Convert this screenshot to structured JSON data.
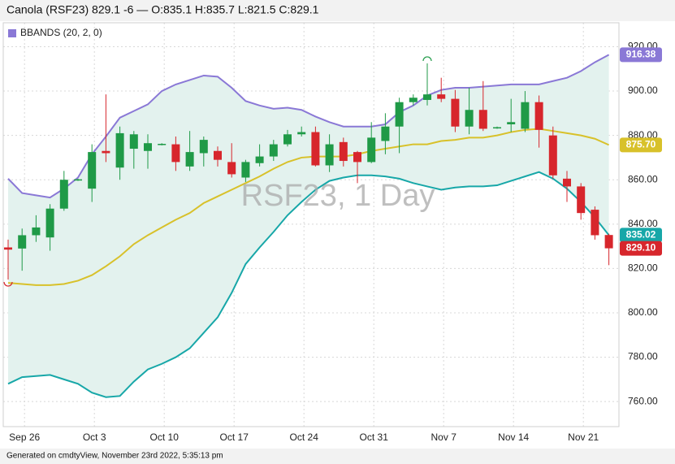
{
  "header": {
    "title": "Canola (RSF23) 829.1 -6 — O:835.1 H:835.7 L:821.5 C:829.1"
  },
  "footer": {
    "text": "Generated on cmdtyView, November 23rd 2022, 5:35:13 pm"
  },
  "chart_data": {
    "type": "candlestick",
    "watermark": "RSF23, 1 Day",
    "legend": "BBANDS (20, 2, 0)",
    "categories": [
      null,
      "Sep 26",
      null,
      null,
      null,
      null,
      "Oct 3",
      null,
      null,
      null,
      null,
      "Oct 10",
      null,
      null,
      null,
      null,
      "Oct 17",
      null,
      null,
      null,
      null,
      "Oct 24",
      null,
      null,
      null,
      null,
      "Oct 31",
      null,
      null,
      null,
      null,
      "Nov 7",
      null,
      null,
      null,
      null,
      "Nov 14",
      null,
      null,
      null,
      null,
      "Nov 21",
      null,
      null
    ],
    "open": [
      829.5,
      829,
      835,
      834,
      847,
      860,
      856,
      873,
      865.5,
      874,
      873,
      876,
      876,
      866,
      872,
      873,
      868,
      861,
      867.5,
      870.5,
      876,
      880.5,
      881.5,
      866.5,
      877,
      872.5,
      868,
      877.5,
      884,
      895,
      896,
      898.5,
      896.5,
      884,
      891.5,
      883.5,
      885,
      883,
      895,
      880,
      860.5,
      857,
      846.5,
      835.1
    ],
    "high": [
      833,
      838,
      844,
      849,
      864,
      860.5,
      876,
      898.5,
      884,
      882,
      880.5,
      876.5,
      879.5,
      882,
      879.5,
      875,
      876.5,
      869,
      876,
      878,
      882.5,
      884,
      884,
      880.5,
      879,
      873,
      886,
      890,
      897,
      898.5,
      912.5,
      906,
      900.5,
      901.5,
      904.5,
      884,
      896.5,
      900,
      898,
      884,
      864,
      858.5,
      848,
      835.7
    ],
    "low": [
      815,
      819,
      832,
      828,
      846,
      859.5,
      850,
      868,
      860,
      865,
      865,
      875.5,
      864,
      864,
      866,
      866,
      861,
      859,
      866,
      868.5,
      875,
      879.5,
      866,
      863.5,
      866,
      858.5,
      867.5,
      871.5,
      872,
      893.5,
      893.5,
      895,
      881.5,
      880.5,
      882,
      883,
      881.5,
      881.5,
      874.5,
      860.5,
      850,
      842,
      833,
      821.5
    ],
    "close": [
      828.5,
      835,
      838.5,
      847,
      860,
      860.2,
      872.5,
      872,
      881,
      880.5,
      876.5,
      876.2,
      868,
      872.5,
      878,
      869,
      862.5,
      868,
      870.5,
      876,
      880.5,
      881.5,
      866.5,
      876,
      868.5,
      868,
      879,
      884,
      895,
      897,
      898.5,
      896.5,
      884,
      891.5,
      883,
      883.7,
      886,
      895,
      882.5,
      862,
      857,
      845,
      835,
      829.1
    ],
    "close_last_label": "829.10",
    "up_color": "#1f9a47",
    "down_color": "#d7262c",
    "series": [
      {
        "name": "upper",
        "color": "#8a78d6",
        "last_label": "916.38",
        "values": [
          860.5,
          854,
          853,
          852,
          856,
          861,
          871.5,
          879.5,
          888,
          891,
          894,
          900,
          903,
          905,
          907,
          906.5,
          901.5,
          895.5,
          893.5,
          892,
          892.5,
          891.5,
          888.5,
          886,
          884,
          884,
          884,
          885,
          890.5,
          893.5,
          898,
          900.5,
          901.5,
          901.5,
          902,
          902.5,
          903,
          903,
          903,
          904.5,
          906,
          909,
          913,
          916.38
        ]
      },
      {
        "name": "middle",
        "color": "#d8c12a",
        "last_label": "875.70",
        "values": [
          813.5,
          813,
          812.5,
          812.5,
          813,
          814.5,
          817,
          821,
          825.5,
          831,
          835,
          838.5,
          842,
          845,
          849.5,
          852.5,
          855.5,
          858.5,
          861.5,
          865,
          868,
          870,
          870.5,
          870.5,
          870.5,
          871.5,
          873,
          874,
          875,
          876,
          876,
          877.5,
          878,
          879,
          879,
          880,
          881.5,
          882.5,
          883,
          882,
          881,
          880,
          878.5,
          875.7
        ]
      },
      {
        "name": "lower",
        "color": "#17a7a8",
        "last_label": "835.02",
        "values": [
          768,
          771,
          771.5,
          772,
          770,
          768,
          764,
          762,
          762.5,
          769,
          774.5,
          777,
          780,
          784,
          791,
          798,
          809,
          822,
          829.5,
          836.5,
          844,
          850,
          855.5,
          859.5,
          861,
          862,
          862,
          861.5,
          860.5,
          858.5,
          857,
          855.5,
          856.5,
          857,
          857,
          857.5,
          859.5,
          861.5,
          863.5,
          860.5,
          856,
          850,
          843,
          835.02
        ]
      }
    ],
    "band_fill": "#e3f2ee",
    "ylim": [
      748.7,
      930.8
    ],
    "yticks": [
      {
        "value": 760,
        "label": "760.00"
      },
      {
        "value": 780,
        "label": "780.00"
      },
      {
        "value": 800,
        "label": "800.00"
      },
      {
        "value": 820,
        "label": "820.00"
      },
      {
        "value": 840,
        "label": "840.00"
      },
      {
        "value": 860,
        "label": "860.00"
      },
      {
        "value": 880,
        "label": "880.00"
      },
      {
        "value": 900,
        "label": "900.00"
      },
      {
        "value": 920,
        "label": "920.00"
      }
    ],
    "grid": true
  }
}
